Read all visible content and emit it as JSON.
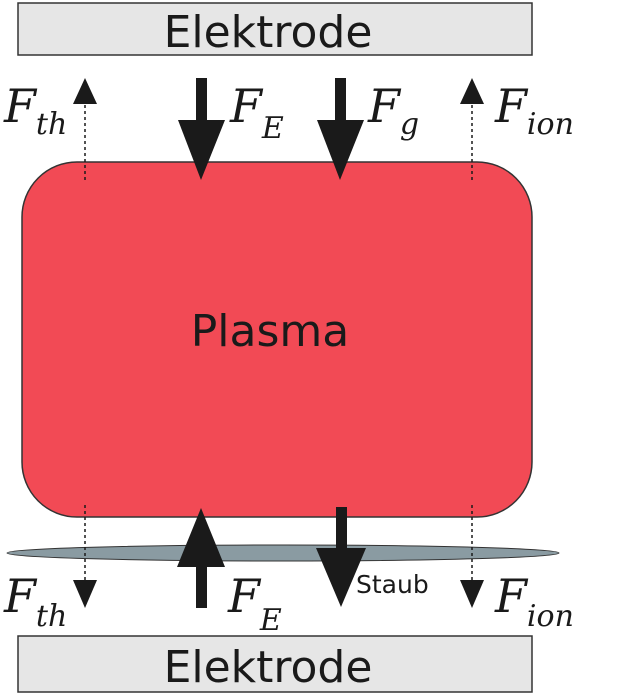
{
  "electrodes": {
    "top_label": "Elektrode",
    "bottom_label": "Elektrode"
  },
  "plasma": {
    "label": "Plasma"
  },
  "dust": {
    "label": "Staub"
  },
  "forces": {
    "top_thermo": {
      "main": "F",
      "sub": "th"
    },
    "top_electric": {
      "main": "F",
      "sub": "E"
    },
    "top_gravity": {
      "main": "F",
      "sub": "g"
    },
    "top_ion": {
      "main": "F",
      "sub": "ion"
    },
    "bottom_thermo": {
      "main": "F",
      "sub": "th"
    },
    "bottom_electric": {
      "main": "F",
      "sub": "E"
    },
    "bottom_ion": {
      "main": "F",
      "sub": "ion"
    }
  },
  "colors": {
    "electrode_fill": "#e6e6e6",
    "plasma_fill": "#f24a55",
    "dust_fill": "#8a9ba2",
    "arrow": "#1a1a1a"
  }
}
